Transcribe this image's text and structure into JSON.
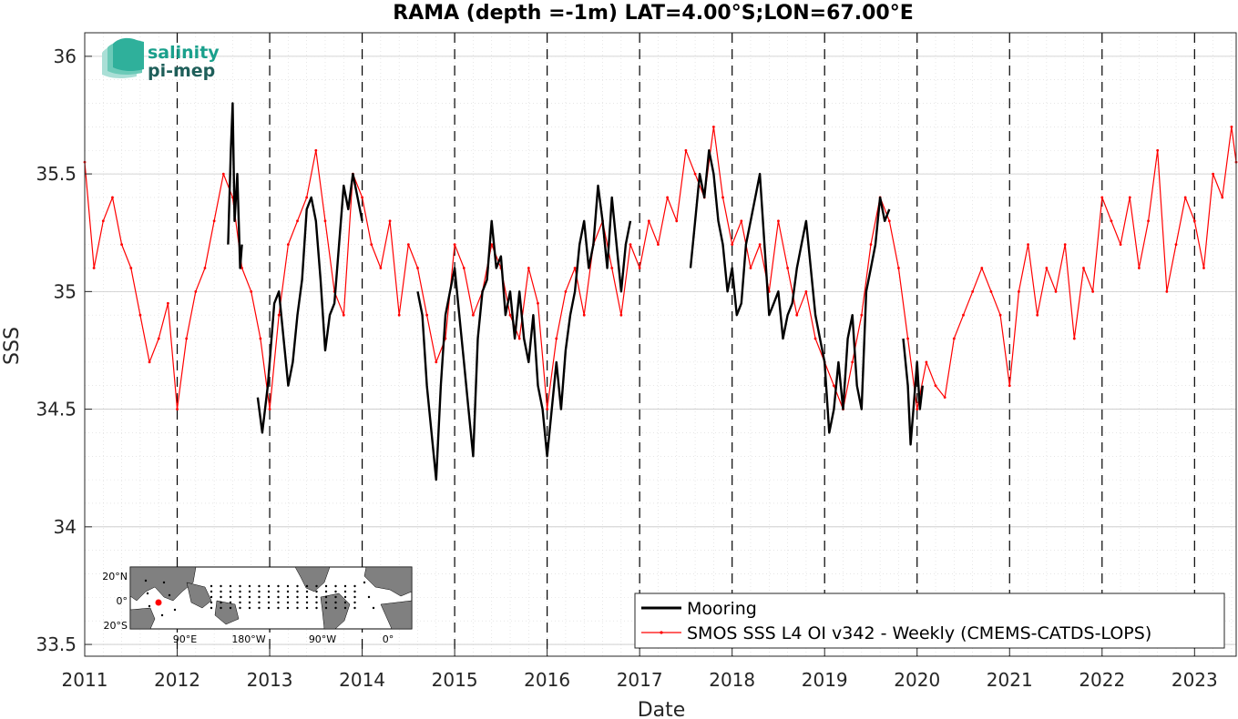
{
  "chart_data": {
    "type": "line",
    "title": "RAMA (depth =-1m) LAT=4.00°S;LON=67.00°E",
    "xlabel": "Date",
    "ylabel": "SSS",
    "xlim": [
      2011.0,
      2023.45
    ],
    "ylim": [
      33.45,
      36.1
    ],
    "x_ticks": [
      "2011",
      "2012",
      "2013",
      "2014",
      "2015",
      "2016",
      "2017",
      "2018",
      "2019",
      "2020",
      "2021",
      "2022",
      "2023"
    ],
    "y_ticks": [
      "33.5",
      "34",
      "34.5",
      "35",
      "35.5",
      "36"
    ],
    "grid": true,
    "minor_grid": true,
    "year_dividers": "dashed",
    "legend_position": "bottom-right",
    "series": [
      {
        "name": "Mooring",
        "color": "#000000",
        "segments": [
          {
            "x": [
              2012.55,
              2012.58,
              2012.6,
              2012.62,
              2012.65,
              2012.68,
              2012.7
            ],
            "y": [
              35.2,
              35.6,
              35.8,
              35.3,
              35.5,
              35.1,
              35.2
            ]
          },
          {
            "x": [
              2012.87,
              2012.92,
              2012.98,
              2013.05,
              2013.1,
              2013.15,
              2013.2,
              2013.25,
              2013.3,
              2013.35,
              2013.4,
              2013.45,
              2013.5,
              2013.55,
              2013.6,
              2013.65,
              2013.7,
              2013.75,
              2013.8,
              2013.85,
              2013.9,
              2013.95,
              2014.0
            ],
            "y": [
              34.55,
              34.4,
              34.6,
              34.95,
              35.0,
              34.8,
              34.6,
              34.7,
              34.9,
              35.05,
              35.35,
              35.4,
              35.3,
              35.05,
              34.75,
              34.9,
              34.95,
              35.2,
              35.45,
              35.35,
              35.5,
              35.4,
              35.3
            ]
          },
          {
            "x": [
              2014.6,
              2014.65,
              2014.7,
              2014.75,
              2014.8,
              2014.85,
              2014.9,
              2014.95,
              2015.0,
              2015.05,
              2015.1,
              2015.15,
              2015.2,
              2015.25,
              2015.3,
              2015.35,
              2015.4,
              2015.45,
              2015.5,
              2015.55,
              2015.6,
              2015.65,
              2015.7,
              2015.75,
              2015.8,
              2015.85,
              2015.9,
              2015.95,
              2016.0,
              2016.05,
              2016.1,
              2016.15,
              2016.2,
              2016.25,
              2016.3,
              2016.35,
              2016.4,
              2016.45,
              2016.5,
              2016.55,
              2016.6,
              2016.65,
              2016.7,
              2016.75,
              2016.8,
              2016.85,
              2016.9
            ],
            "y": [
              35.0,
              34.9,
              34.6,
              34.4,
              34.2,
              34.6,
              34.9,
              35.0,
              35.1,
              34.9,
              34.7,
              34.5,
              34.3,
              34.8,
              35.0,
              35.05,
              35.3,
              35.1,
              35.15,
              34.9,
              35.0,
              34.8,
              35.0,
              34.8,
              34.7,
              34.9,
              34.6,
              34.5,
              34.3,
              34.5,
              34.7,
              34.5,
              34.75,
              34.9,
              35.0,
              35.2,
              35.3,
              35.1,
              35.2,
              35.45,
              35.3,
              35.1,
              35.4,
              35.2,
              35.0,
              35.2,
              35.3
            ]
          },
          {
            "x": [
              2017.55,
              2017.6,
              2017.65,
              2017.7,
              2017.75,
              2017.8,
              2017.85,
              2017.9,
              2017.95,
              2018.0,
              2018.05,
              2018.1,
              2018.15,
              2018.2,
              2018.25,
              2018.3,
              2018.35,
              2018.4,
              2018.45,
              2018.5,
              2018.55,
              2018.6,
              2018.65,
              2018.7,
              2018.75,
              2018.8,
              2018.85,
              2018.9,
              2018.95,
              2019.0,
              2019.05,
              2019.1,
              2019.15,
              2019.2,
              2019.25,
              2019.3,
              2019.35,
              2019.4,
              2019.45,
              2019.5,
              2019.55,
              2019.6,
              2019.65,
              2019.7
            ],
            "y": [
              35.1,
              35.3,
              35.5,
              35.4,
              35.6,
              35.5,
              35.3,
              35.2,
              35.0,
              35.1,
              34.9,
              34.95,
              35.2,
              35.3,
              35.4,
              35.5,
              35.2,
              34.9,
              34.95,
              35.0,
              34.8,
              34.9,
              34.95,
              35.1,
              35.2,
              35.3,
              35.1,
              34.9,
              34.8,
              34.7,
              34.4,
              34.5,
              34.7,
              34.5,
              34.8,
              34.9,
              34.6,
              34.5,
              35.0,
              35.1,
              35.2,
              35.4,
              35.3,
              35.35
            ]
          },
          {
            "x": [
              2019.85,
              2019.9,
              2019.93,
              2019.96,
              2020.0,
              2020.03,
              2020.06
            ],
            "y": [
              34.8,
              34.6,
              34.35,
              34.5,
              34.7,
              34.5,
              34.6
            ]
          }
        ]
      },
      {
        "name": "SMOS SSS L4 OI v342 - Weekly (CMEMS-CATDS-LOPS)",
        "color": "#ff0000",
        "x": [
          2011.0,
          2011.1,
          2011.2,
          2011.3,
          2011.4,
          2011.5,
          2011.6,
          2011.7,
          2011.8,
          2011.9,
          2012.0,
          2012.1,
          2012.2,
          2012.3,
          2012.4,
          2012.5,
          2012.6,
          2012.7,
          2012.8,
          2012.9,
          2013.0,
          2013.1,
          2013.2,
          2013.3,
          2013.4,
          2013.5,
          2013.6,
          2013.7,
          2013.8,
          2013.9,
          2014.0,
          2014.1,
          2014.2,
          2014.3,
          2014.4,
          2014.5,
          2014.6,
          2014.7,
          2014.8,
          2014.9,
          2015.0,
          2015.1,
          2015.2,
          2015.3,
          2015.4,
          2015.5,
          2015.6,
          2015.7,
          2015.8,
          2015.9,
          2016.0,
          2016.1,
          2016.2,
          2016.3,
          2016.4,
          2016.5,
          2016.6,
          2016.7,
          2016.8,
          2016.9,
          2017.0,
          2017.1,
          2017.2,
          2017.3,
          2017.4,
          2017.5,
          2017.6,
          2017.7,
          2017.8,
          2017.9,
          2018.0,
          2018.1,
          2018.2,
          2018.3,
          2018.4,
          2018.5,
          2018.6,
          2018.7,
          2018.8,
          2018.9,
          2019.0,
          2019.1,
          2019.2,
          2019.3,
          2019.4,
          2019.5,
          2019.6,
          2019.7,
          2019.8,
          2019.9,
          2020.0,
          2020.1,
          2020.2,
          2020.3,
          2020.4,
          2020.5,
          2020.6,
          2020.7,
          2020.8,
          2020.9,
          2021.0,
          2021.1,
          2021.2,
          2021.3,
          2021.4,
          2021.5,
          2021.6,
          2021.7,
          2021.8,
          2021.9,
          2022.0,
          2022.1,
          2022.2,
          2022.3,
          2022.4,
          2022.5,
          2022.6,
          2022.7,
          2022.8,
          2022.9,
          2023.0,
          2023.1,
          2023.2,
          2023.3,
          2023.4,
          2023.45
        ],
        "y": [
          35.55,
          35.1,
          35.3,
          35.4,
          35.2,
          35.1,
          34.9,
          34.7,
          34.8,
          34.95,
          34.5,
          34.8,
          35.0,
          35.1,
          35.3,
          35.5,
          35.4,
          35.1,
          35.0,
          34.8,
          34.5,
          34.9,
          35.2,
          35.3,
          35.4,
          35.6,
          35.3,
          35.0,
          34.9,
          35.5,
          35.4,
          35.2,
          35.1,
          35.3,
          34.9,
          35.2,
          35.1,
          34.9,
          34.7,
          34.8,
          35.2,
          35.1,
          34.9,
          35.0,
          35.2,
          35.1,
          34.9,
          34.8,
          35.1,
          34.95,
          34.5,
          34.8,
          35.0,
          35.1,
          34.9,
          35.2,
          35.3,
          35.1,
          34.9,
          35.2,
          35.1,
          35.3,
          35.2,
          35.4,
          35.3,
          35.6,
          35.5,
          35.4,
          35.7,
          35.4,
          35.2,
          35.3,
          35.1,
          35.2,
          35.0,
          35.3,
          35.1,
          34.9,
          35.0,
          34.8,
          34.7,
          34.6,
          34.5,
          34.7,
          34.9,
          35.2,
          35.4,
          35.3,
          35.1,
          34.8,
          34.5,
          34.7,
          34.6,
          34.55,
          34.8,
          34.9,
          35.0,
          35.1,
          35.0,
          34.9,
          34.6,
          35.0,
          35.2,
          34.9,
          35.1,
          35.0,
          35.2,
          34.8,
          35.1,
          35.0,
          35.4,
          35.3,
          35.2,
          35.4,
          35.1,
          35.3,
          35.6,
          35.0,
          35.2,
          35.4,
          35.3,
          35.1,
          35.5,
          35.4,
          35.7,
          35.55
        ]
      }
    ]
  },
  "logo": {
    "line1": "salinity",
    "line2": "pi-mep"
  },
  "inset_map": {
    "lat_labels": [
      "20°N",
      "0°",
      "20°S"
    ],
    "lon_labels": [
      "90°E",
      "180°W",
      "90°W",
      "0°"
    ],
    "marker_color": "#ff0000"
  }
}
